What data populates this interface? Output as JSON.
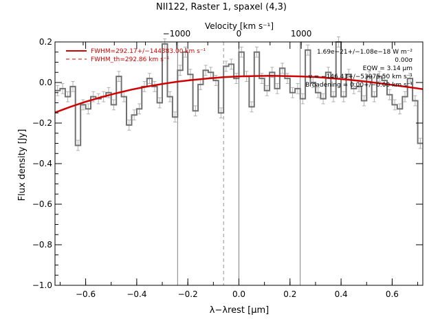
{
  "chart_data": {
    "type": "line",
    "title": "NII122, Raster 1, spaxel (4,3)",
    "xlabel": "λ−λrest [μm]",
    "ylabel": "Flux density [Jy]",
    "top_axis_label": "Velocity [km s⁻¹]",
    "xlim": [
      -0.72,
      0.72
    ],
    "ylim": [
      -1.0,
      0.2
    ],
    "x_ticks": [
      -0.6,
      -0.4,
      -0.2,
      0.0,
      0.2,
      0.4,
      0.6
    ],
    "x_tick_labels": [
      "−0.6",
      "−0.4",
      "−0.2",
      "0.0",
      "0.2",
      "0.4",
      "0.6"
    ],
    "y_ticks": [
      -1.0,
      -0.8,
      -0.6,
      -0.4,
      -0.2,
      0.0,
      0.2
    ],
    "y_tick_labels": [
      "−1.0",
      "−0.8",
      "−0.6",
      "−0.4",
      "−0.2",
      "0.0",
      "0.2"
    ],
    "top_ticks": [
      -1000,
      0,
      1000
    ],
    "top_tick_labels": [
      "−1000",
      "0",
      "1000"
    ],
    "velocity_per_um": 4100,
    "vertical_lines": [
      -0.24,
      0.0,
      0.24
    ],
    "dashed_vertical_line": -0.06,
    "legend": [
      {
        "label": "FWHM=292.17+/−144383.00 km s⁻¹",
        "style": "solid",
        "color": "#d00000"
      },
      {
        "label": "FWHM_th=292.86 km s⁻¹",
        "style": "dashed",
        "color": "#d00000"
      }
    ],
    "annotations": [
      "1.69e−21+/−1.08e−18 W m⁻²",
      "0.00σ",
      "EQW = 3.14 μm",
      "v = −146.43+/−53075.50 km s⁻¹",
      "Broadening = 0.00+/−0.00 km s⁻¹"
    ],
    "series": [
      {
        "style": "steps",
        "color": "#707070",
        "x": [
          -0.71,
          -0.69,
          -0.67,
          -0.65,
          -0.63,
          -0.61,
          -0.59,
          -0.57,
          -0.55,
          -0.53,
          -0.51,
          -0.49,
          -0.47,
          -0.45,
          -0.43,
          -0.41,
          -0.39,
          -0.37,
          -0.35,
          -0.33,
          -0.31,
          -0.29,
          -0.27,
          -0.25,
          -0.23,
          -0.21,
          -0.19,
          -0.17,
          -0.15,
          -0.13,
          -0.11,
          -0.09,
          -0.07,
          -0.05,
          -0.03,
          -0.01,
          0.01,
          0.03,
          0.05,
          0.07,
          0.09,
          0.11,
          0.13,
          0.15,
          0.17,
          0.19,
          0.21,
          0.23,
          0.25,
          0.27,
          0.29,
          0.31,
          0.33,
          0.35,
          0.37,
          0.39,
          0.41,
          0.43,
          0.45,
          0.47,
          0.49,
          0.51,
          0.53,
          0.55,
          0.57,
          0.59,
          0.61,
          0.63,
          0.65,
          0.67,
          0.69,
          0.71
        ],
        "y": [
          -0.04,
          -0.03,
          -0.07,
          -0.02,
          -0.31,
          -0.11,
          -0.13,
          -0.07,
          -0.08,
          -0.07,
          -0.05,
          -0.11,
          0.03,
          -0.07,
          -0.21,
          -0.16,
          -0.13,
          -0.02,
          0.02,
          -0.02,
          -0.1,
          0.19,
          -0.07,
          -0.17,
          0.06,
          0.15,
          0.04,
          -0.14,
          -0.01,
          0.06,
          0.05,
          0.01,
          -0.15,
          0.08,
          0.09,
          0.02,
          0.15,
          0.03,
          -0.12,
          0.15,
          0.02,
          -0.04,
          0.05,
          -0.03,
          0.07,
          0.02,
          -0.05,
          -0.03,
          -0.08,
          0.16,
          0.0,
          -0.05,
          -0.08,
          0.05,
          -0.07,
          0.2,
          -0.07,
          0.04,
          -0.03,
          -0.02,
          -0.09,
          0.03,
          -0.07,
          0.03,
          0.01,
          -0.06,
          -0.11,
          -0.13,
          -0.07,
          0.02,
          -0.09,
          -0.3
        ],
        "yerr": 0.025
      },
      {
        "style": "line",
        "color": "#d00000",
        "x": [
          -0.72,
          -0.66,
          -0.6,
          -0.54,
          -0.48,
          -0.42,
          -0.36,
          -0.3,
          -0.24,
          -0.18,
          -0.12,
          -0.06,
          0.0,
          0.06,
          0.12,
          0.18,
          0.24,
          0.3,
          0.36,
          0.42,
          0.48,
          0.54,
          0.6,
          0.66,
          0.72
        ],
        "y": [
          -0.148,
          -0.12,
          -0.095,
          -0.073,
          -0.053,
          -0.035,
          -0.02,
          -0.007,
          0.004,
          0.013,
          0.02,
          0.026,
          0.03,
          0.032,
          0.033,
          0.032,
          0.03,
          0.027,
          0.021,
          0.015,
          0.007,
          -0.002,
          -0.012,
          -0.022,
          -0.033
        ]
      }
    ]
  }
}
